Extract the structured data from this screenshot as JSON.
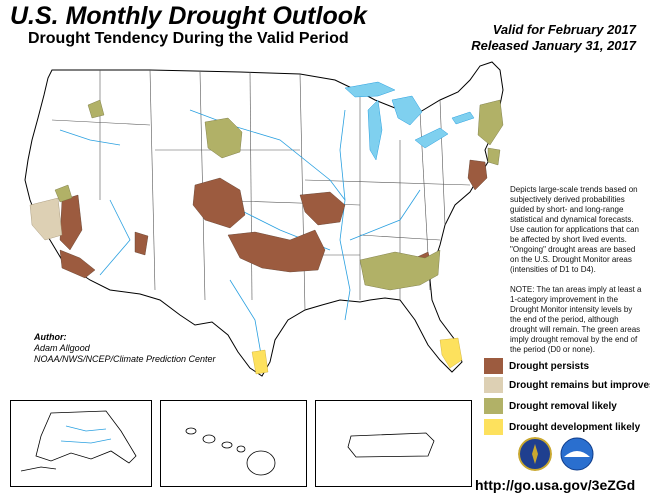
{
  "header": {
    "title": "U.S. Monthly Drought Outlook",
    "subtitle": "Drought Tendency During the Valid Period",
    "valid": "Valid for February 2017",
    "released": "Released January 31, 2017"
  },
  "description": "Depicts large-scale trends based on subjectively derived probabilities guided by short- and long-range statistical and dynamical forecasts. Use caution for applications that can be affected by short lived events. \"Ongoing\" drought areas are based on the U.S. Drought Monitor areas (intensities of D1 to D4).",
  "note": "NOTE: The tan areas imply at least a 1-category improvement in the Drought Monitor intensity levels by the end of the period, although drought will remain. The green areas imply drought removal by the end of the period (D0 or none).",
  "author": {
    "heading": "Author:",
    "name": "Adam Allgood",
    "org": "NOAA/NWS/NCEP/Climate Prediction Center"
  },
  "legend": [
    {
      "label": "Drought persists",
      "color": "#9c5b3f"
    },
    {
      "label": "Drought remains but improves",
      "color": "#ddd0b4"
    },
    {
      "label": "Drought removal likely",
      "color": "#b1b167"
    },
    {
      "label": "Drought development likely",
      "color": "#fde15d"
    }
  ],
  "url": "http://go.usa.gov/3eZGd",
  "colors": {
    "water": "#7fd0ef",
    "rivers": "#2aa0e0",
    "persists": "#9c5b3f",
    "improves": "#ddd0b4",
    "removal": "#b1b167",
    "development": "#fde15d"
  },
  "logos": [
    "nws-logo",
    "noaa-logo"
  ]
}
